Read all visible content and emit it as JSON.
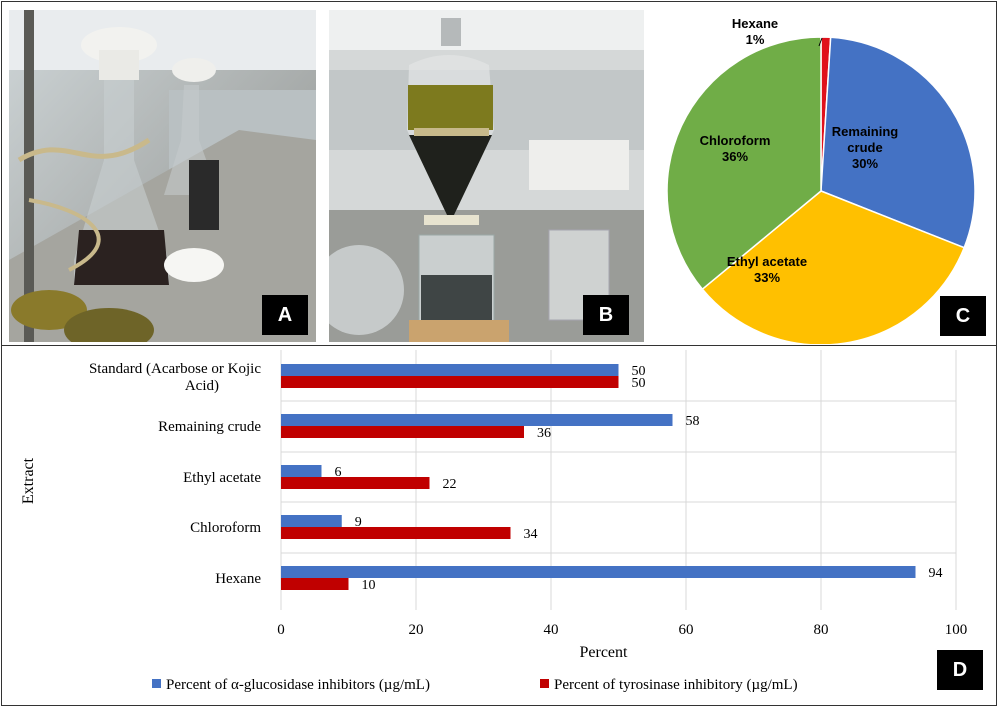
{
  "panels": {
    "a": "A",
    "b": "B",
    "c": "C",
    "d": "D"
  },
  "chart_data": [
    {
      "type": "pie",
      "labels": [
        "Hexane",
        "Remaining crude",
        "Ethyl acetate",
        "Chloroform"
      ],
      "values": [
        1,
        30,
        33,
        36
      ],
      "value_labels": [
        "1%",
        "30%",
        "33%",
        "36%"
      ],
      "colors": [
        "#e0111b",
        "#4472c4",
        "#ffc000",
        "#70ad47"
      ]
    },
    {
      "type": "bar",
      "orientation": "horizontal",
      "categories": [
        "Standard (Acarbose or Kojic Acid)",
        "Remaining crude",
        "Ethyl acetate",
        "Chloroform",
        "Hexane"
      ],
      "category_lines": [
        [
          "Standard (Acarbose or Kojic",
          "Acid)"
        ],
        [
          "Remaining crude"
        ],
        [
          "Ethyl acetate"
        ],
        [
          "Chloroform"
        ],
        [
          "Hexane"
        ]
      ],
      "series": [
        {
          "name": "Percent of α-glucosidase inhibitors (µg/mL)",
          "values": [
            50,
            58,
            6,
            9,
            94
          ],
          "color": "#4472c4"
        },
        {
          "name": "Percent of tyrosinase inhibitory (µg/mL)",
          "values": [
            50,
            36,
            22,
            34,
            10
          ],
          "color": "#c00000"
        }
      ],
      "xlabel": "Percent",
      "ylabel": "Extract",
      "xlim": [
        0,
        100
      ],
      "xticks": [
        0,
        20,
        40,
        60,
        80,
        100
      ],
      "grid": true,
      "legend_position": "bottom"
    }
  ]
}
